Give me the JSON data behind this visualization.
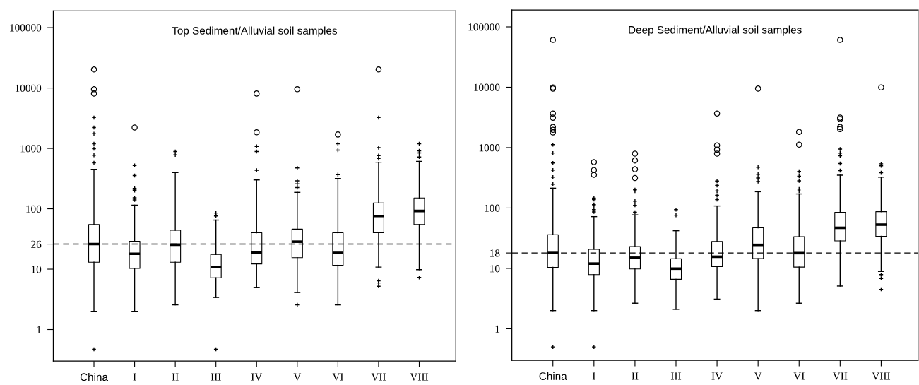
{
  "chart_data": [
    {
      "type": "box",
      "title": "Top Sediment/Alluvial soil samples",
      "categories": [
        "China",
        "I",
        "II",
        "III",
        "IV",
        "V",
        "VI",
        "VII",
        "VIII"
      ],
      "log": true,
      "ylim": [
        0.3,
        190000
      ],
      "yticks": [
        1,
        10,
        {
          "value": 26,
          "label": "26"
        },
        100,
        1000,
        10000,
        100000
      ],
      "grid": false,
      "legend": false,
      "marker": "cross",
      "color": "#000000",
      "boxes": [
        {
          "low": 2.0,
          "q1": 13,
          "median": 26,
          "q3": 55,
          "high": 450,
          "outliers": [
            0.47,
            575,
            770,
            990,
            1190,
            1750,
            2220,
            3240
          ]
        },
        {
          "low": 2.0,
          "q1": 10.3,
          "median": 18,
          "q3": 29,
          "high": 115,
          "outliers": [
            140,
            152,
            200,
            210,
            218,
            355,
            520
          ]
        },
        {
          "low": 2.56,
          "q1": 13,
          "median": 25.4,
          "q3": 44,
          "high": 397,
          "outliers": [
            780,
            886
          ]
        },
        {
          "low": 3.4,
          "q1": 7.2,
          "median": 10.9,
          "q3": 17.5,
          "high": 65,
          "outliers": [
            0.47,
            76,
            85
          ]
        },
        {
          "low": 5.0,
          "q1": 12.2,
          "median": 19,
          "q3": 40,
          "high": 300,
          "outliers": [
            435,
            886,
            1080
          ]
        },
        {
          "low": 4.1,
          "q1": 15.5,
          "median": 28.5,
          "q3": 46,
          "high": 187,
          "outliers": [
            2.56,
            225,
            259,
            290,
            475
          ]
        },
        {
          "low": 2.56,
          "q1": 11.6,
          "median": 18.6,
          "q3": 40,
          "high": 318,
          "outliers": [
            367,
            937,
            1188
          ]
        },
        {
          "low": 10.8,
          "q1": 40,
          "median": 76,
          "q3": 125,
          "high": 590,
          "outliers": [
            5.2,
            5.9,
            6.4,
            680,
            760,
            1030,
            3240
          ]
        },
        {
          "low": 9.8,
          "q1": 55,
          "median": 92,
          "q3": 151,
          "high": 610,
          "outliers": [
            7.3,
            720,
            840,
            910,
            1190
          ]
        }
      ],
      "series": [
        {
          "type": "scatter",
          "marker": "circle",
          "color": "#000000",
          "x": [
            "China",
            "China",
            "China",
            "I",
            "IV",
            "IV",
            "V",
            "VI",
            "VII"
          ],
          "values": [
            20300,
            9550,
            8100,
            2220,
            8100,
            1850,
            9550,
            1700,
            20300
          ]
        }
      ],
      "ref_lines": [
        {
          "axis": "y",
          "value": 26,
          "line_style": "dashed",
          "color": "#000000"
        }
      ]
    },
    {
      "type": "box",
      "title": "Deep Sediment/Alluvial soil samples",
      "categories": [
        "China",
        "I",
        "II",
        "III",
        "IV",
        "V",
        "VI",
        "VII",
        "VIII"
      ],
      "log": true,
      "ylim": [
        0.3,
        190000
      ],
      "yticks": [
        1,
        10,
        {
          "value": 18,
          "label": "18"
        },
        100,
        1000,
        10000,
        100000
      ],
      "grid": false,
      "legend": false,
      "marker": "cross",
      "color": "#000000",
      "boxes": [
        {
          "low": 2.0,
          "q1": 10.4,
          "median": 18,
          "q3": 36,
          "high": 213,
          "outliers": [
            0.5,
            248,
            324,
            425,
            556,
            813,
            1120
          ]
        },
        {
          "low": 2.0,
          "q1": 7.9,
          "median": 12,
          "q3": 20.7,
          "high": 72,
          "outliers": [
            0.5,
            86,
            94,
            109,
            114,
            138,
            146
          ]
        },
        {
          "low": 2.65,
          "q1": 9.8,
          "median": 15,
          "q3": 23,
          "high": 77,
          "outliers": [
            85,
            111,
            130,
            191,
            201
          ]
        },
        {
          "low": 2.1,
          "q1": 6.6,
          "median": 9.9,
          "q3": 14.4,
          "high": 42,
          "outliers": [
            76,
            94
          ]
        },
        {
          "low": 3.1,
          "q1": 10.7,
          "median": 15.6,
          "q3": 28,
          "high": 108,
          "outliers": [
            138,
            162,
            191,
            237,
            280
          ]
        },
        {
          "low": 2.0,
          "q1": 14.5,
          "median": 24.5,
          "q3": 47,
          "high": 186,
          "outliers": [
            274,
            314,
            361,
            473
          ]
        },
        {
          "low": 2.65,
          "q1": 10.5,
          "median": 17.9,
          "q3": 33.6,
          "high": 171,
          "outliers": [
            191,
            206,
            282,
            336,
            404
          ]
        },
        {
          "low": 5.1,
          "q1": 28.5,
          "median": 47,
          "q3": 85,
          "high": 350,
          "outliers": [
            416,
            545,
            732,
            812,
            945
          ]
        },
        {
          "low": 8.9,
          "q1": 34,
          "median": 53,
          "q3": 87,
          "high": 324,
          "outliers": [
            4.5,
            6.8,
            7.9,
            383,
            500,
            540
          ]
        }
      ],
      "series": [
        {
          "type": "scatter",
          "marker": "circle",
          "color": "#000000",
          "x": [
            "China",
            "China",
            "China",
            "China",
            "China",
            "China",
            "China",
            "China",
            "I",
            "I",
            "I",
            "II",
            "II",
            "II",
            "II",
            "IV",
            "IV",
            "IV",
            "IV",
            "V",
            "VI",
            "VI",
            "VII",
            "VII",
            "VII",
            "VII",
            "VII",
            "VIII"
          ],
          "values": [
            60700,
            9930,
            9500,
            3670,
            3130,
            2190,
            1970,
            1790,
            576,
            425,
            354,
            795,
            614,
            439,
            314,
            3670,
            1090,
            924,
            795,
            9500,
            1820,
            1120,
            60700,
            3130,
            2980,
            2190,
            2030,
            9930
          ]
        }
      ],
      "ref_lines": [
        {
          "axis": "y",
          "value": 18,
          "line_style": "dashed",
          "color": "#000000"
        }
      ]
    }
  ]
}
